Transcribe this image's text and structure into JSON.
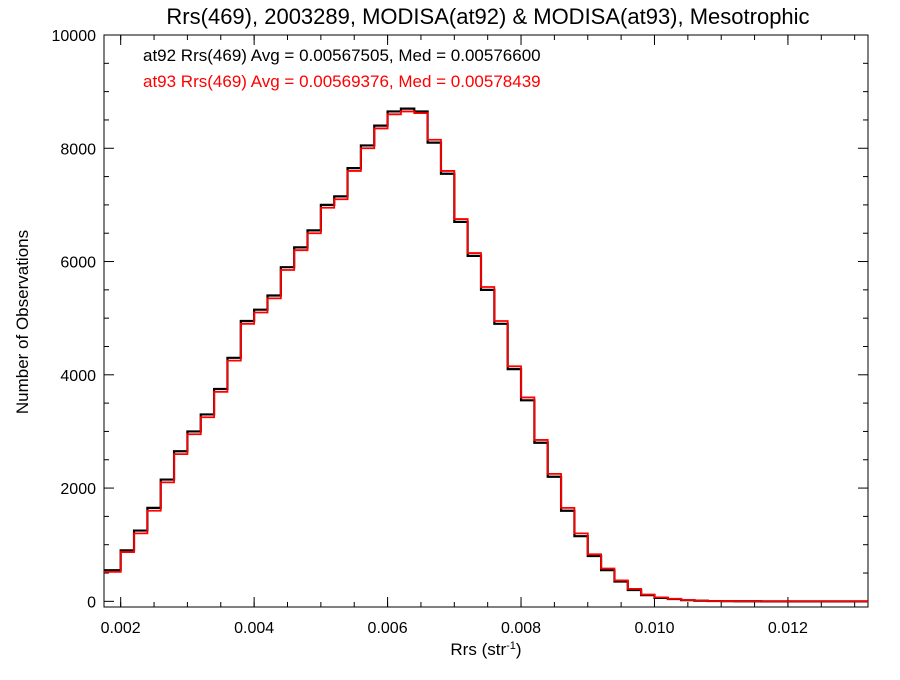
{
  "chart_data": {
    "type": "line",
    "title": "Rrs(469), 2003289, MODISA(at92) & MODISA(at93), Mesotrophic",
    "xlabel": "Rrs (str",
    "xlabel_sup": "-1",
    "xlabel_close": ")",
    "ylabel": "Number of Observations",
    "xlim": [
      0.00175,
      0.0132
    ],
    "ylim": [
      -100,
      10000
    ],
    "xticks": [
      0.002,
      0.004,
      0.006,
      0.008,
      0.01,
      0.012
    ],
    "xtick_labels": [
      "0.002",
      "0.004",
      "0.006",
      "0.008",
      "0.010",
      "0.012"
    ],
    "yticks": [
      0,
      2000,
      4000,
      6000,
      8000,
      10000
    ],
    "ytick_labels": [
      "0",
      "2000",
      "4000",
      "6000",
      "8000",
      "10000"
    ],
    "grid": false,
    "legend": "top-left",
    "series": [
      {
        "name": "at92 Rrs(469) Avg = 0.00567505, Med = 0.00576600",
        "color": "#000000",
        "x": [
          0.00175,
          0.002,
          0.0022,
          0.0024,
          0.0026,
          0.0028,
          0.003,
          0.0032,
          0.0034,
          0.0036,
          0.0038,
          0.004,
          0.0042,
          0.0044,
          0.0046,
          0.0048,
          0.005,
          0.0052,
          0.0054,
          0.0056,
          0.0058,
          0.006,
          0.0062,
          0.0064,
          0.0066,
          0.0068,
          0.007,
          0.0072,
          0.0074,
          0.0076,
          0.0078,
          0.008,
          0.0082,
          0.0084,
          0.0086,
          0.0088,
          0.009,
          0.0092,
          0.0094,
          0.0096,
          0.0098,
          0.01,
          0.0102,
          0.0104,
          0.0106,
          0.0108,
          0.011,
          0.0112,
          0.0114,
          0.0116,
          0.0118,
          0.012,
          0.0122,
          0.0124,
          0.0126,
          0.0128,
          0.013,
          0.0132
        ],
        "y": [
          550,
          900,
          1250,
          1650,
          2150,
          2650,
          3000,
          3300,
          3750,
          4300,
          4950,
          5150,
          5400,
          5900,
          6250,
          6550,
          7000,
          7150,
          7650,
          8050,
          8400,
          8650,
          8700,
          8650,
          8100,
          7550,
          6700,
          6100,
          5500,
          4900,
          4100,
          3550,
          2800,
          2200,
          1600,
          1150,
          800,
          550,
          350,
          200,
          110,
          60,
          40,
          20,
          10,
          5,
          3,
          2,
          1,
          0,
          0,
          0,
          0,
          0,
          0,
          0,
          0,
          0
        ]
      },
      {
        "name": "at93 Rrs(469) Avg = 0.00569376, Med = 0.00578439",
        "color": "#ff0000",
        "x": [
          0.00175,
          0.002,
          0.0022,
          0.0024,
          0.0026,
          0.0028,
          0.003,
          0.0032,
          0.0034,
          0.0036,
          0.0038,
          0.004,
          0.0042,
          0.0044,
          0.0046,
          0.0048,
          0.005,
          0.0052,
          0.0054,
          0.0056,
          0.0058,
          0.006,
          0.0062,
          0.0064,
          0.0066,
          0.0068,
          0.007,
          0.0072,
          0.0074,
          0.0076,
          0.0078,
          0.008,
          0.0082,
          0.0084,
          0.0086,
          0.0088,
          0.009,
          0.0092,
          0.0094,
          0.0096,
          0.0098,
          0.01,
          0.0102,
          0.0104,
          0.0106,
          0.0108,
          0.011,
          0.0112,
          0.0114,
          0.0116,
          0.0118,
          0.012,
          0.0122,
          0.0124,
          0.0126,
          0.0128,
          0.013,
          0.0132
        ],
        "y": [
          520,
          870,
          1200,
          1600,
          2100,
          2600,
          2950,
          3250,
          3700,
          4250,
          4900,
          5100,
          5350,
          5850,
          6200,
          6500,
          6950,
          7100,
          7600,
          8000,
          8350,
          8600,
          8650,
          8620,
          8150,
          7600,
          6750,
          6150,
          5550,
          4950,
          4150,
          3600,
          2850,
          2250,
          1650,
          1200,
          830,
          580,
          370,
          220,
          120,
          70,
          45,
          25,
          12,
          6,
          4,
          2,
          1,
          0,
          0,
          0,
          0,
          0,
          0,
          0,
          0,
          0
        ]
      }
    ]
  }
}
